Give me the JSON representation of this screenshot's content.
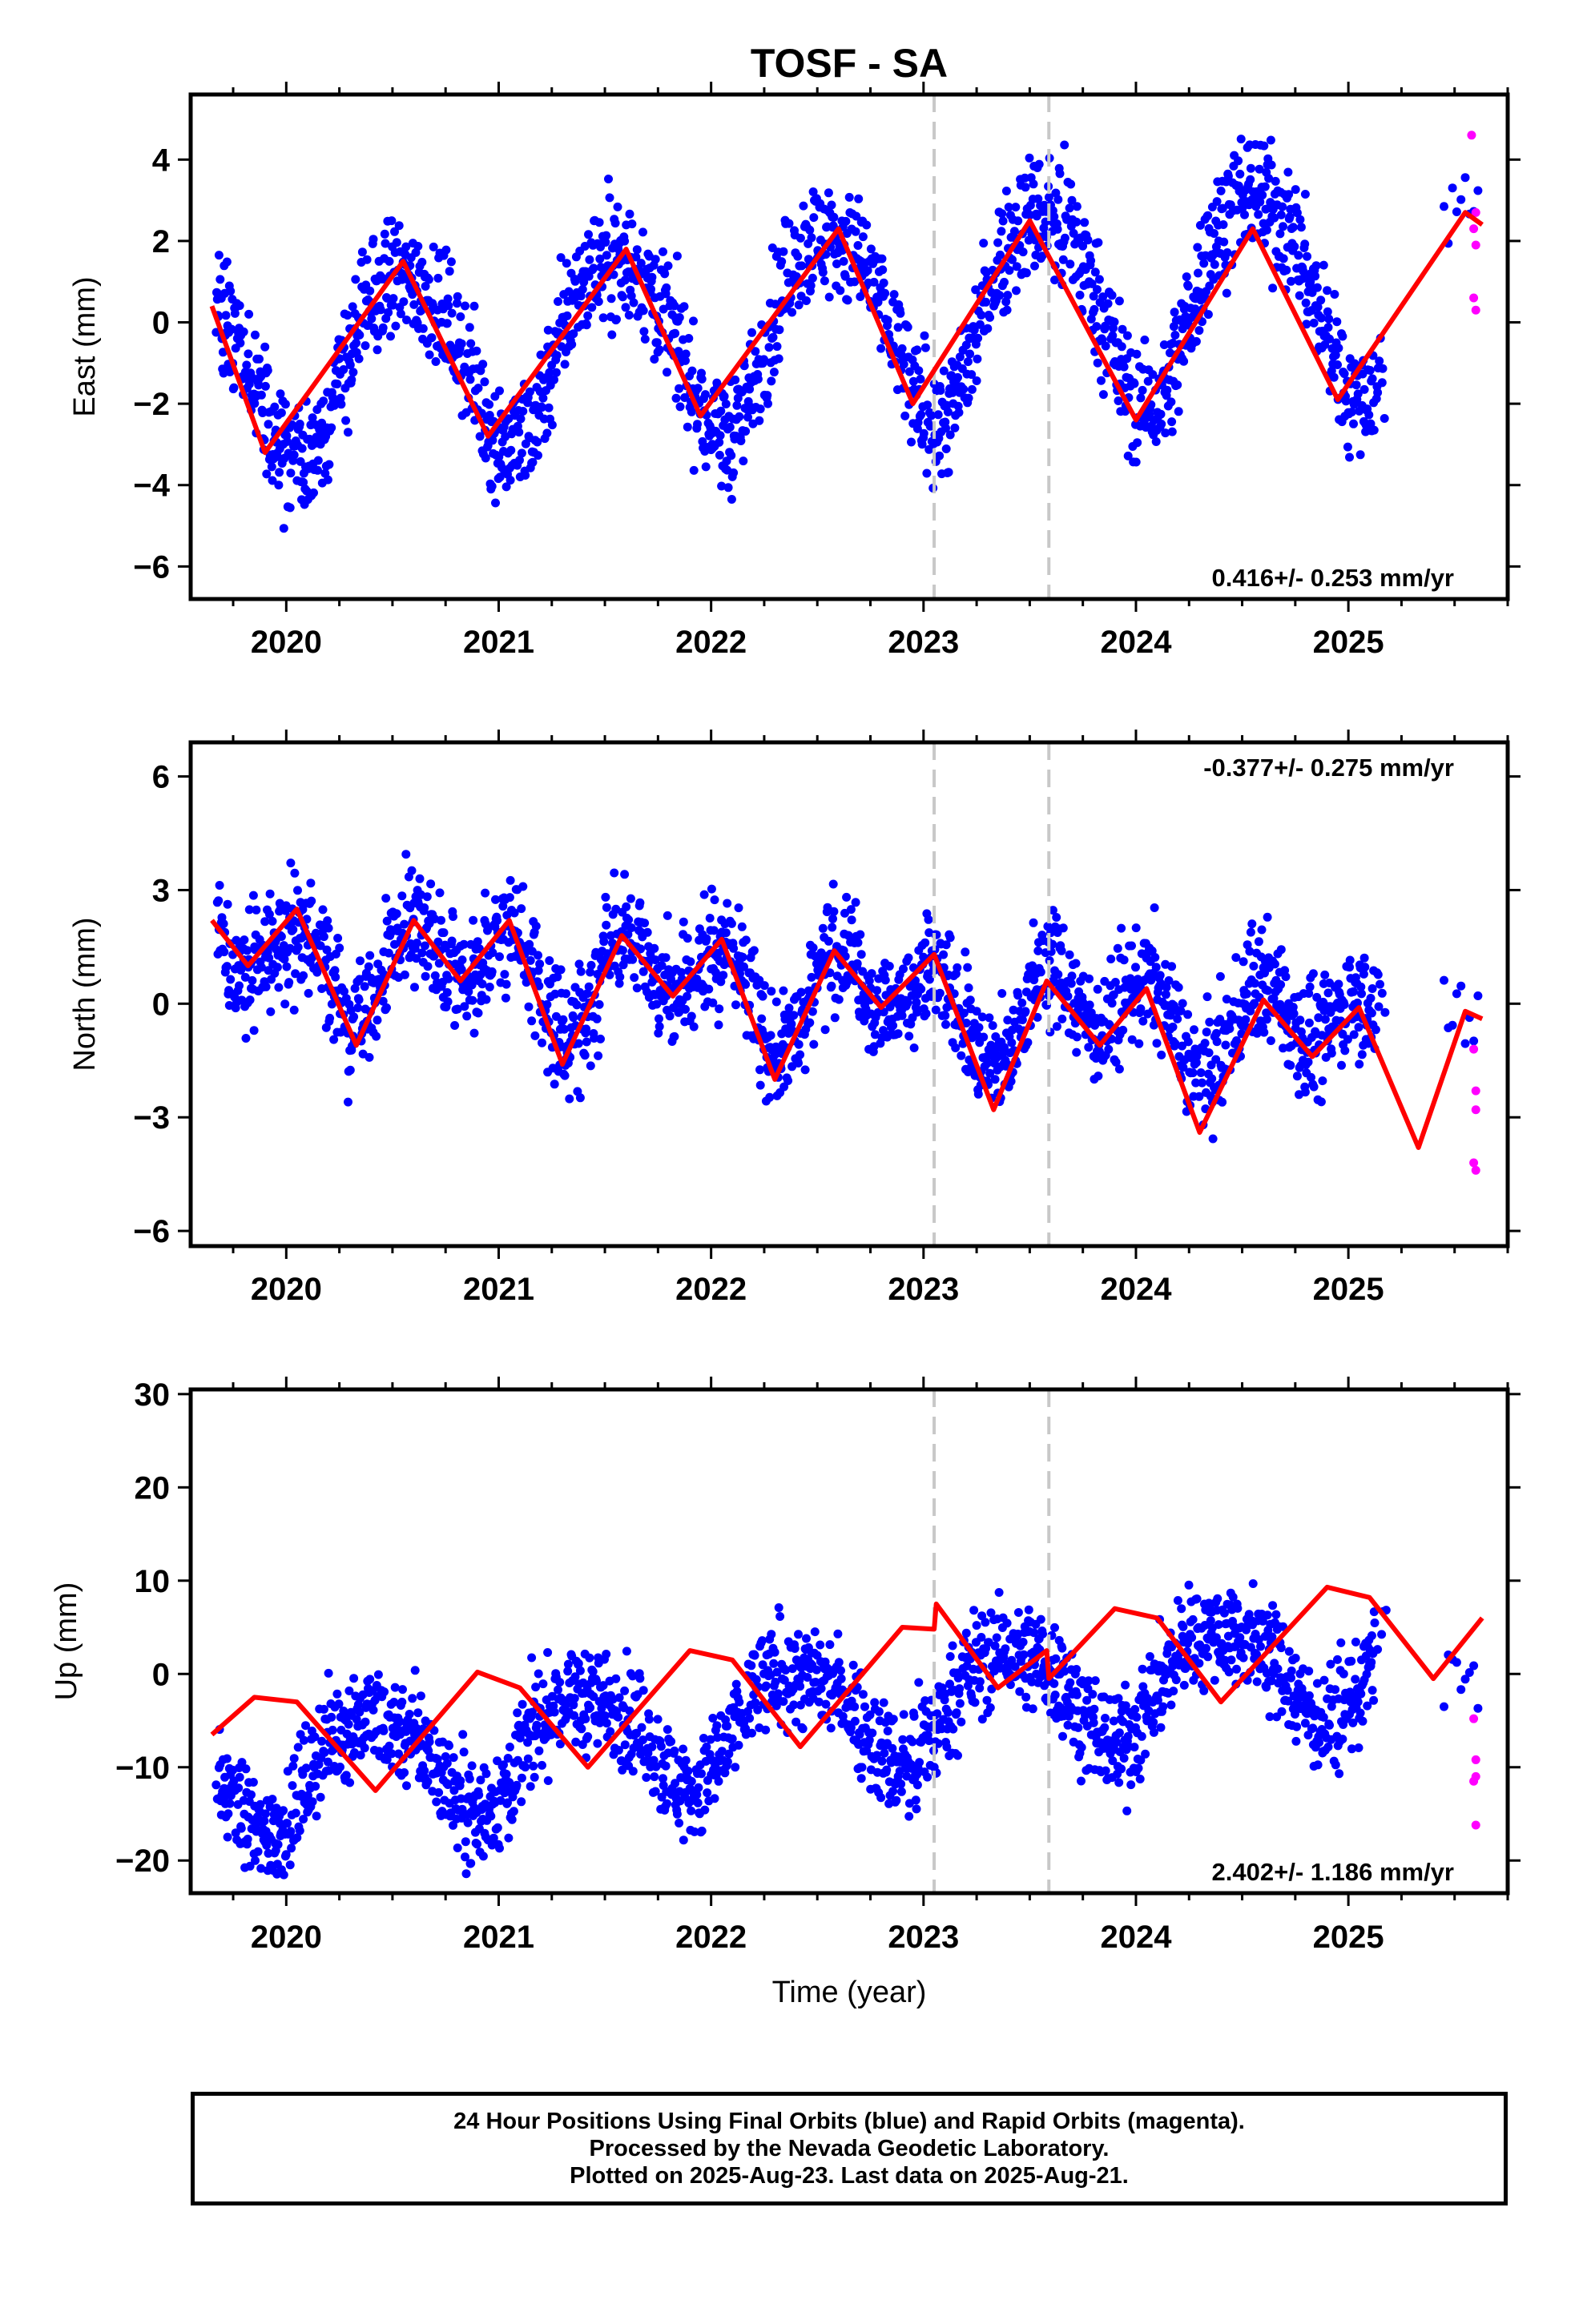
{
  "title": "TOSF - SA",
  "xlabel": "Time (year)",
  "caption": {
    "line1": "24 Hour Positions Using Final Orbits (blue) and Rapid Orbits (magenta).",
    "line2": "Processed by the Nevada Geodetic Laboratory.",
    "line3": "Plotted on 2025-Aug-23. Last data on 2025-Aug-21."
  },
  "colors": {
    "final": "#0000ff",
    "rapid": "#ff00ff",
    "fit": "#ff0000",
    "break": "#c8c8c8"
  },
  "chart_data": [
    {
      "type": "scatter",
      "name": "east",
      "ylabel": "East (mm)",
      "rate_label": "0.416+/- 0.253 mm/yr",
      "rate_position": "bottom-right",
      "xlim": [
        2019.55,
        2025.75
      ],
      "ylim": [
        -6.8,
        5.6
      ],
      "xticks": [
        "2020",
        "2021",
        "2022",
        "2023",
        "2024",
        "2025"
      ],
      "yticks": [
        -6,
        -4,
        -2,
        0,
        2,
        4
      ],
      "ytick_labels": [
        "−6",
        "−4",
        "−2",
        "0",
        "2",
        "4"
      ],
      "breaks": [
        2023.05,
        2023.59
      ],
      "model": {
        "offset": 0.0,
        "rate": 0.416,
        "annual": 2.1,
        "phase": 2020.3,
        "semi": 0.3,
        "noise": 1.0,
        "amp_growth": 0.05
      },
      "fit_line": [
        [
          2019.65,
          0.4
        ],
        [
          2019.9,
          -3.2
        ],
        [
          2020.55,
          1.5
        ],
        [
          2020.95,
          -2.8
        ],
        [
          2021.6,
          1.8
        ],
        [
          2021.95,
          -2.3
        ],
        [
          2022.6,
          2.3
        ],
        [
          2022.95,
          -2.0
        ],
        [
          2023.5,
          2.5
        ],
        [
          2024.0,
          -2.4
        ],
        [
          2024.55,
          2.3
        ],
        [
          2024.95,
          -1.9
        ],
        [
          2025.55,
          2.7
        ],
        [
          2025.63,
          2.4
        ]
      ],
      "rapid_points": [
        [
          2025.58,
          4.6
        ],
        [
          2025.59,
          2.3
        ],
        [
          2025.6,
          2.7
        ],
        [
          2025.6,
          1.9
        ],
        [
          2025.59,
          0.6
        ],
        [
          2025.6,
          0.3
        ]
      ]
    },
    {
      "type": "scatter",
      "name": "north",
      "ylabel": "North (mm)",
      "rate_label": "-0.377+/- 0.275 mm/yr",
      "rate_position": "top-right",
      "xlim": [
        2019.55,
        2025.75
      ],
      "ylim": [
        -6.4,
        6.9
      ],
      "xticks": [
        "2020",
        "2021",
        "2022",
        "2023",
        "2024",
        "2025"
      ],
      "yticks": [
        -6,
        -3,
        0,
        3,
        6
      ],
      "ytick_labels": [
        "−6",
        "−3",
        "0",
        "3",
        "6"
      ],
      "breaks": [
        2023.05,
        2023.59
      ],
      "model": {
        "offset": 0.3,
        "rate": -0.377,
        "annual": 0.6,
        "phase": 2020.55,
        "semi": 1.0,
        "noise": 1.0,
        "amp_growth": 0.0
      },
      "fit_line": [
        [
          2019.65,
          2.2
        ],
        [
          2019.82,
          1.0
        ],
        [
          2020.05,
          2.5
        ],
        [
          2020.33,
          -1.1
        ],
        [
          2020.6,
          2.2
        ],
        [
          2020.82,
          0.6
        ],
        [
          2021.05,
          2.2
        ],
        [
          2021.3,
          -1.6
        ],
        [
          2021.58,
          1.8
        ],
        [
          2021.82,
          0.2
        ],
        [
          2022.05,
          1.7
        ],
        [
          2022.3,
          -2.0
        ],
        [
          2022.58,
          1.4
        ],
        [
          2022.8,
          -0.1
        ],
        [
          2023.05,
          1.3
        ],
        [
          2023.33,
          -2.8
        ],
        [
          2023.58,
          0.6
        ],
        [
          2023.83,
          -1.1
        ],
        [
          2024.05,
          0.4
        ],
        [
          2024.3,
          -3.4
        ],
        [
          2024.6,
          0.1
        ],
        [
          2024.83,
          -1.4
        ],
        [
          2025.05,
          -0.1
        ],
        [
          2025.33,
          -3.8
        ],
        [
          2025.55,
          -0.2
        ],
        [
          2025.63,
          -0.4
        ]
      ],
      "rapid_points": [
        [
          2025.59,
          -1.2
        ],
        [
          2025.6,
          -2.3
        ],
        [
          2025.6,
          -2.8
        ],
        [
          2025.59,
          -4.2
        ],
        [
          2025.6,
          -4.4
        ]
      ]
    },
    {
      "type": "scatter",
      "name": "up",
      "ylabel": "Up (mm)",
      "rate_label": "2.402+/- 1.186 mm/yr",
      "rate_position": "bottom-right",
      "xlim": [
        2019.55,
        2025.75
      ],
      "ylim": [
        -23.5,
        30.5
      ],
      "xticks": [
        "2020",
        "2021",
        "2022",
        "2023",
        "2024",
        "2025"
      ],
      "yticks": [
        -20,
        -10,
        0,
        10,
        20,
        30
      ],
      "ytick_labels": [
        "−20",
        "−10",
        "0",
        "10",
        "20",
        "30"
      ],
      "breaks": [
        2023.05,
        2023.59
      ],
      "model": {
        "offset": -4.5,
        "rate": 2.402,
        "annual": 5.5,
        "phase": 2020.15,
        "semi": 1.0,
        "noise": 3.8,
        "amp_growth": 0.0
      },
      "fit_line": [
        [
          2019.65,
          -6.5
        ],
        [
          2019.85,
          -2.5
        ],
        [
          2020.05,
          -3.0
        ],
        [
          2020.42,
          -12.5
        ],
        [
          2020.9,
          0.2
        ],
        [
          2021.1,
          -1.5
        ],
        [
          2021.42,
          -10.0
        ],
        [
          2021.9,
          2.5
        ],
        [
          2022.1,
          1.5
        ],
        [
          2022.42,
          -7.8
        ],
        [
          2022.9,
          5.0
        ],
        [
          2023.05,
          4.8
        ],
        [
          2023.06,
          7.5
        ],
        [
          2023.35,
          -1.5
        ],
        [
          2023.58,
          2.5
        ],
        [
          2023.59,
          -0.5
        ],
        [
          2023.9,
          7.0
        ],
        [
          2024.1,
          6.0
        ],
        [
          2024.4,
          -3.0
        ],
        [
          2024.9,
          9.3
        ],
        [
          2025.1,
          8.2
        ],
        [
          2025.4,
          -0.5
        ],
        [
          2025.63,
          6.0
        ]
      ],
      "rapid_points": [
        [
          2025.59,
          -4.8
        ],
        [
          2025.6,
          -9.2
        ],
        [
          2025.6,
          -11.0
        ],
        [
          2025.59,
          -11.5
        ],
        [
          2025.6,
          -16.2
        ]
      ]
    }
  ]
}
